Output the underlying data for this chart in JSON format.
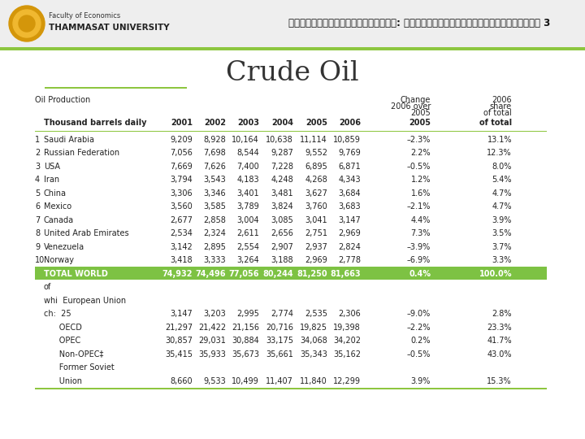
{
  "title": "Crude Oil",
  "years": [
    "2001",
    "2002",
    "2003",
    "2004",
    "2005",
    "2006"
  ],
  "rows": [
    {
      "num": "1",
      "name": "Saudi Arabia",
      "vals": [
        "9,209",
        "8,928",
        "10,164",
        "10,638",
        "11,114",
        "10,859"
      ],
      "chg": "–2.3%",
      "share": "13.1%",
      "bold": false,
      "green": false
    },
    {
      "num": "2",
      "name": "Russian Federation",
      "vals": [
        "7,056",
        "7,698",
        "8,544",
        "9,287",
        "9,552",
        "9,769"
      ],
      "chg": "2.2%",
      "share": "12.3%",
      "bold": false,
      "green": false
    },
    {
      "num": "3",
      "name": "USA",
      "vals": [
        "7,669",
        "7,626",
        "7,400",
        "7,228",
        "6,895",
        "6,871"
      ],
      "chg": "–0.5%",
      "share": "8.0%",
      "bold": false,
      "green": false
    },
    {
      "num": "4",
      "name": "Iran",
      "vals": [
        "3,794",
        "3,543",
        "4,183",
        "4,248",
        "4,268",
        "4,343"
      ],
      "chg": "1.2%",
      "share": "5.4%",
      "bold": false,
      "green": false
    },
    {
      "num": "5",
      "name": "China",
      "vals": [
        "3,306",
        "3,346",
        "3,401",
        "3,481",
        "3,627",
        "3,684"
      ],
      "chg": "1.6%",
      "share": "4.7%",
      "bold": false,
      "green": false
    },
    {
      "num": "6",
      "name": "Mexico",
      "vals": [
        "3,560",
        "3,585",
        "3,789",
        "3,824",
        "3,760",
        "3,683"
      ],
      "chg": "–2.1%",
      "share": "4.7%",
      "bold": false,
      "green": false
    },
    {
      "num": "7",
      "name": "Canada",
      "vals": [
        "2,677",
        "2,858",
        "3,004",
        "3,085",
        "3,041",
        "3,147"
      ],
      "chg": "4.4%",
      "share": "3.9%",
      "bold": false,
      "green": false
    },
    {
      "num": "8",
      "name": "United Arab Emirates",
      "vals": [
        "2,534",
        "2,324",
        "2,611",
        "2,656",
        "2,751",
        "2,969"
      ],
      "chg": "7.3%",
      "share": "3.5%",
      "bold": false,
      "green": false
    },
    {
      "num": "9",
      "name": "Venezuela",
      "vals": [
        "3,142",
        "2,895",
        "2,554",
        "2,907",
        "2,937",
        "2,824"
      ],
      "chg": "–3.9%",
      "share": "3.7%",
      "bold": false,
      "green": false
    },
    {
      "num": "10",
      "name": "Norway",
      "vals": [
        "3,418",
        "3,333",
        "3,264",
        "3,188",
        "2,969",
        "2,778"
      ],
      "chg": "–6.9%",
      "share": "3.3%",
      "bold": false,
      "green": false
    },
    {
      "num": "",
      "name": "TOTAL WORLD",
      "vals": [
        "74,932",
        "74,496",
        "77,056",
        "80,244",
        "81,250",
        "81,663"
      ],
      "chg": "0.4%",
      "share": "100.0%",
      "bold": true,
      "green": true
    },
    {
      "num": "",
      "name": "of",
      "vals": [
        "",
        "",
        "",
        "",
        "",
        ""
      ],
      "chg": "",
      "share": "",
      "bold": false,
      "green": false
    },
    {
      "num": "",
      "name": "whi  European Union",
      "vals": [
        "",
        "",
        "",
        "",
        "",
        ""
      ],
      "chg": "",
      "share": "",
      "bold": false,
      "green": false
    },
    {
      "num": "",
      "name": "ch:  25",
      "vals": [
        "3,147",
        "3,203",
        "2,995",
        "2,774",
        "2,535",
        "2,306"
      ],
      "chg": "–9.0%",
      "share": "2.8%",
      "bold": false,
      "green": false
    },
    {
      "num": "",
      "name": "      OECD",
      "vals": [
        "21,297",
        "21,422",
        "21,156",
        "20,716",
        "19,825",
        "19,398"
      ],
      "chg": "–2.2%",
      "share": "23.3%",
      "bold": false,
      "green": false
    },
    {
      "num": "",
      "name": "      OPEC",
      "vals": [
        "30,857",
        "29,031",
        "30,884",
        "33,175",
        "34,068",
        "34,202"
      ],
      "chg": "0.2%",
      "share": "41.7%",
      "bold": false,
      "green": false
    },
    {
      "num": "",
      "name": "      Non-OPEC‡",
      "vals": [
        "35,415",
        "35,933",
        "35,673",
        "35,661",
        "35,343",
        "35,162"
      ],
      "chg": "–0.5%",
      "share": "43.0%",
      "bold": false,
      "green": false
    },
    {
      "num": "",
      "name": "      Former Soviet",
      "vals": [
        "",
        "",
        "",
        "",
        "",
        ""
      ],
      "chg": "",
      "share": "",
      "bold": false,
      "green": false
    },
    {
      "num": "",
      "name": "      Union",
      "vals": [
        "8,660",
        "9,533",
        "10,499",
        "11,407",
        "11,840",
        "12,299"
      ],
      "chg": "3.9%",
      "share": "15.3%",
      "bold": false,
      "green": false
    }
  ],
  "bg_color": "#ffffff",
  "green_color": "#7dc243",
  "olive_line": "#8dc63f",
  "text_color": "#222222",
  "header_bg": "#f2f2f2"
}
